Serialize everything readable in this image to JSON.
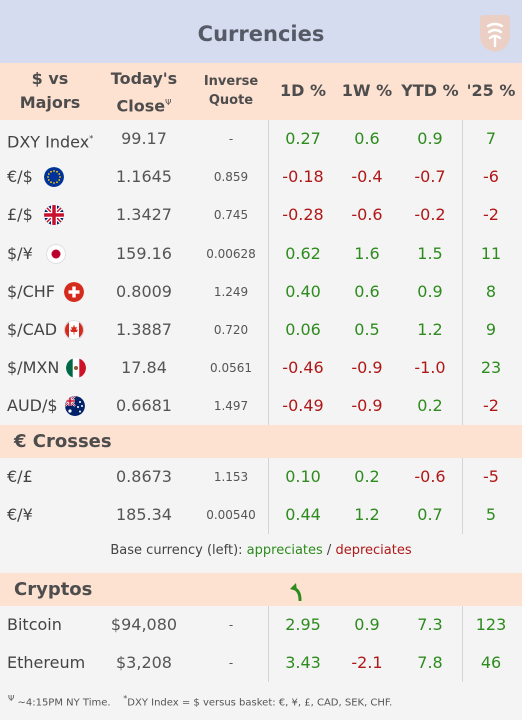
{
  "title": "Currencies",
  "header": {
    "col1": [
      "$ vs",
      "Majors"
    ],
    "col2": [
      "Today's",
      "Close"
    ],
    "col2_mark": "Ψ",
    "col3": [
      "Inverse",
      "Quote"
    ],
    "col4": "1D %",
    "col5": "1W %",
    "col6": "YTD %",
    "col7": "'25 %"
  },
  "majors": [
    {
      "label": "DXY Index",
      "mark": "*",
      "flag": "",
      "close": "99.17",
      "inverse": "-",
      "d1": "0.27",
      "w1": "0.6",
      "ytd": "0.9",
      "y25": "7"
    },
    {
      "label": "€/$",
      "mark": "",
      "flag": "eu-flag-icon",
      "close": "1.1645",
      "inverse": "0.859",
      "d1": "-0.18",
      "w1": "-0.4",
      "ytd": "-0.7",
      "y25": "-6"
    },
    {
      "label": "£/$",
      "mark": "",
      "flag": "uk-flag-icon",
      "close": "1.3427",
      "inverse": "0.745",
      "d1": "-0.28",
      "w1": "-0.6",
      "ytd": "-0.2",
      "y25": "-2"
    },
    {
      "label": "$/¥",
      "mark": "",
      "flag": "japan-flag-icon",
      "close": "159.16",
      "inverse": "0.00628",
      "d1": "0.62",
      "w1": "1.6",
      "ytd": "1.5",
      "y25": "11"
    },
    {
      "label": "$/CHF",
      "mark": "",
      "flag": "swiss-flag-icon",
      "close": "0.8009",
      "inverse": "1.249",
      "d1": "0.40",
      "w1": "0.6",
      "ytd": "0.9",
      "y25": "8"
    },
    {
      "label": "$/CAD",
      "mark": "",
      "flag": "canada-flag-icon",
      "close": "1.3887",
      "inverse": "0.720",
      "d1": "0.06",
      "w1": "0.5",
      "ytd": "1.2",
      "y25": "9"
    },
    {
      "label": "$/MXN",
      "mark": "",
      "flag": "mexico-flag-icon",
      "close": "17.84",
      "inverse": "0.0561",
      "d1": "-0.46",
      "w1": "-0.9",
      "ytd": "-1.0",
      "y25": "23"
    },
    {
      "label": "AUD/$",
      "mark": "",
      "flag": "australia-flag-icon",
      "close": "0.6681",
      "inverse": "1.497",
      "d1": "-0.49",
      "w1": "-0.9",
      "ytd": "0.2",
      "y25": "-2"
    }
  ],
  "crosses_title": "€ Crosses",
  "crosses": [
    {
      "label": "€/£",
      "close": "0.8673",
      "inverse": "1.153",
      "d1": "0.10",
      "w1": "0.2",
      "ytd": "-0.6",
      "y25": "-5"
    },
    {
      "label": "€/¥",
      "close": "185.34",
      "inverse": "0.00540",
      "d1": "0.44",
      "w1": "1.2",
      "ytd": "0.7",
      "y25": "5"
    }
  ],
  "legend": {
    "prefix": "Base currency (left): ",
    "up": "appreciates",
    "sep": " / ",
    "down": "depreciates"
  },
  "cryptos_title": "Cryptos",
  "cryptos": [
    {
      "label": "Bitcoin",
      "close": "$94,080",
      "inverse": "-",
      "d1": "2.95",
      "w1": "0.9",
      "ytd": "7.3",
      "y25": "123"
    },
    {
      "label": "Ethereum",
      "close": "$3,208",
      "inverse": "-",
      "d1": "3.43",
      "w1": "-2.1",
      "ytd": "7.8",
      "y25": "46"
    }
  ],
  "footer": {
    "mark1": "Ψ",
    "note1": " ~4:15PM NY Time.",
    "mark2": "*",
    "note2": "DXY Index = $ versus basket: €, ¥, £, CAD, SEK, CHF."
  },
  "colors": {
    "positive": "#2e8b1e",
    "negative": "#b01818",
    "header_bg": "#fde1d1",
    "title_bg": "#d6dcef"
  }
}
